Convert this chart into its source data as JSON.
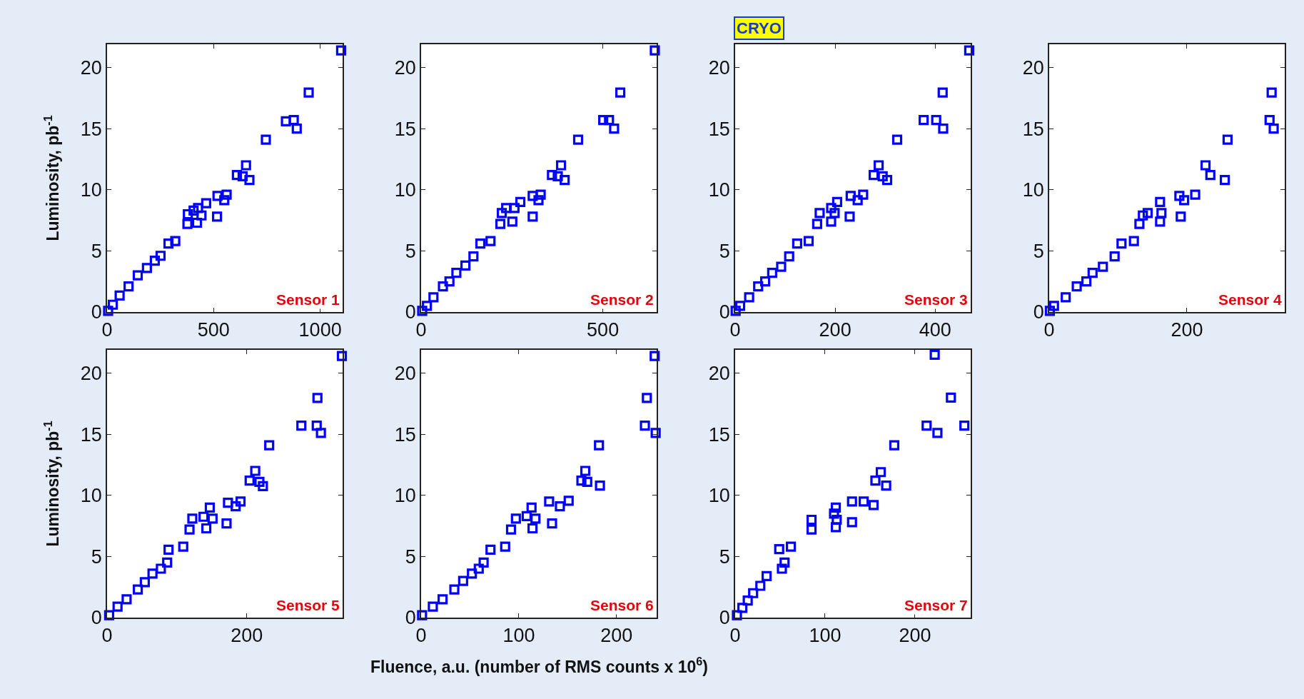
{
  "chart_data": [
    {
      "type": "scatter",
      "ylabel": "Luminosity, pb$^{-1}$",
      "annotations": [
        "Sensor 1"
      ],
      "marker": "square",
      "xlim": [
        0,
        1105
      ],
      "ylim": [
        0,
        21.9
      ],
      "xticks": [
        0,
        500,
        1000
      ],
      "yticks": [
        0,
        5,
        10,
        15,
        20
      ],
      "x": [
        5,
        27,
        59,
        101,
        144,
        187,
        224,
        251,
        288,
        320,
        377,
        379,
        406,
        422,
        427,
        443,
        465,
        516,
        518,
        550,
        561,
        609,
        636,
        652,
        668,
        745,
        839,
        876,
        890,
        946,
        1098
      ],
      "series": [
        {
          "color": "#0000ff",
          "values": [
            0.1,
            0.6,
            1.35,
            2.1,
            3.0,
            3.6,
            4.2,
            4.6,
            5.6,
            5.8,
            7.2,
            8.0,
            8.3,
            7.3,
            8.5,
            7.9,
            8.9,
            7.8,
            9.5,
            9.15,
            9.6,
            11.2,
            11.1,
            12.0,
            10.8,
            14.1,
            15.6,
            15.7,
            15.0,
            17.95,
            21.4
          ]
        }
      ]
    },
    {
      "type": "scatter",
      "annotations": [
        "Sensor 2"
      ],
      "marker": "square",
      "xlim": [
        0,
        648
      ],
      "ylim": [
        0,
        21.9
      ],
      "xticks": [
        0,
        500
      ],
      "yticks": [
        0,
        5,
        10,
        15,
        20
      ],
      "x": [
        3,
        16,
        34,
        60,
        78,
        97,
        122,
        144,
        163,
        191,
        218,
        222,
        234,
        251,
        257,
        273,
        307,
        307,
        323,
        329,
        360,
        376,
        385,
        395,
        432,
        501,
        517,
        531,
        548,
        643
      ],
      "series": [
        {
          "color": "#0000ff",
          "values": [
            0.1,
            0.5,
            1.2,
            2.1,
            2.5,
            3.2,
            3.8,
            4.55,
            5.6,
            5.8,
            7.2,
            8.1,
            8.5,
            7.4,
            8.5,
            9.0,
            9.5,
            7.8,
            9.15,
            9.6,
            11.2,
            11.1,
            12.0,
            10.8,
            14.1,
            15.7,
            15.7,
            15.0,
            17.95,
            21.4
          ]
        }
      ]
    },
    {
      "type": "scatter",
      "title": "CRYO",
      "annotations": [
        "Sensor 3"
      ],
      "marker": "square",
      "xlim": [
        0,
        471
      ],
      "ylim": [
        0,
        21.9
      ],
      "xticks": [
        0,
        200,
        400
      ],
      "yticks": [
        0,
        5,
        10,
        15,
        20
      ],
      "x": [
        1,
        10,
        28,
        46,
        60,
        74,
        92,
        108,
        124,
        147,
        164,
        169,
        192,
        192,
        199,
        204,
        229,
        231,
        245,
        256,
        277,
        287,
        295,
        304,
        324,
        377,
        402,
        416,
        415,
        468
      ],
      "series": [
        {
          "color": "#0000ff",
          "values": [
            0.1,
            0.5,
            1.2,
            2.1,
            2.5,
            3.2,
            3.7,
            4.55,
            5.6,
            5.8,
            7.2,
            8.1,
            8.5,
            7.4,
            8.1,
            9.0,
            7.8,
            9.5,
            9.15,
            9.6,
            11.2,
            12.0,
            11.1,
            10.8,
            14.1,
            15.7,
            15.7,
            15.0,
            17.95,
            21.4
          ]
        }
      ]
    },
    {
      "type": "scatter",
      "annotations": [
        "Sensor 4"
      ],
      "marker": "square",
      "xlim": [
        0,
        342
      ],
      "ylim": [
        0,
        21.9
      ],
      "xticks": [
        0,
        200
      ],
      "yticks": [
        0,
        5,
        10,
        15,
        20
      ],
      "x": [
        1,
        7,
        24,
        40,
        54,
        63,
        78,
        95,
        105,
        123,
        131,
        136,
        143,
        161,
        161,
        163,
        189,
        191,
        196,
        212,
        227,
        234,
        255,
        259,
        320,
        326,
        323
      ],
      "series": [
        {
          "color": "#0000ff",
          "values": [
            0.1,
            0.5,
            1.2,
            2.1,
            2.5,
            3.2,
            3.7,
            4.55,
            5.6,
            5.8,
            7.2,
            7.9,
            8.1,
            9.0,
            7.4,
            8.1,
            9.5,
            7.8,
            9.15,
            9.6,
            12.0,
            11.2,
            10.8,
            14.1,
            15.7,
            15.0,
            17.95
          ]
        }
      ]
    },
    {
      "type": "scatter",
      "ylabel": "Luminosity, pb$^{-1}$",
      "annotations": [
        "Sensor 5"
      ],
      "marker": "square",
      "xlim": [
        0,
        337
      ],
      "ylim": [
        0,
        21.9
      ],
      "xticks": [
        0,
        200
      ],
      "yticks": [
        0,
        5,
        10,
        15,
        20
      ],
      "x": [
        3,
        15,
        28,
        44,
        54,
        65,
        77,
        86,
        88,
        109,
        118,
        122,
        138,
        142,
        147,
        151,
        171,
        173,
        184,
        191,
        204,
        212,
        218,
        223,
        232,
        278,
        300,
        306,
        301,
        336
      ],
      "series": [
        {
          "color": "#0000ff",
          "values": [
            0.2,
            0.9,
            1.5,
            2.3,
            2.9,
            3.6,
            4.0,
            4.5,
            5.55,
            5.8,
            7.2,
            8.1,
            8.25,
            7.3,
            9.0,
            8.1,
            7.7,
            9.4,
            9.1,
            9.5,
            11.2,
            12.0,
            11.1,
            10.75,
            14.1,
            15.7,
            15.7,
            15.1,
            17.96,
            21.4
          ]
        }
      ]
    },
    {
      "type": "scatter",
      "xlabel": "Fluence, a.u. (number of RMS counts x 10$^{6}$)",
      "annotations": [
        "Sensor 6"
      ],
      "marker": "square",
      "xlim": [
        0,
        241
      ],
      "ylim": [
        0,
        21.9
      ],
      "xticks": [
        0,
        100,
        200
      ],
      "yticks": [
        0,
        5,
        10,
        15,
        20
      ],
      "x": [
        1,
        12,
        22,
        34,
        43,
        52,
        59,
        64,
        71,
        86,
        92,
        97,
        108,
        113,
        114,
        117,
        131,
        134,
        142,
        151,
        164,
        168,
        170,
        182,
        183,
        229,
        240,
        231,
        239
      ],
      "series": [
        {
          "color": "#0000ff",
          "values": [
            0.2,
            0.9,
            1.5,
            2.3,
            3.0,
            3.6,
            4.0,
            4.5,
            5.55,
            5.8,
            7.2,
            8.1,
            8.3,
            9.0,
            7.3,
            8.1,
            9.5,
            7.7,
            9.1,
            9.55,
            11.2,
            12.0,
            11.1,
            14.1,
            10.8,
            15.7,
            15.1,
            17.96,
            21.4
          ]
        }
      ]
    },
    {
      "type": "scatter",
      "annotations": [
        "Sensor 7"
      ],
      "marker": "square",
      "xlim": [
        0,
        262
      ],
      "ylim": [
        0,
        21.9
      ],
      "xticks": [
        0,
        100,
        200
      ],
      "yticks": [
        0,
        5,
        10,
        15,
        20
      ],
      "x": [
        2,
        8,
        14,
        20,
        28,
        35,
        52,
        55,
        49,
        62,
        85,
        85,
        110,
        112,
        113,
        112,
        130,
        130,
        143,
        154,
        156,
        162,
        168,
        177,
        213,
        225,
        255,
        240,
        222
      ],
      "series": [
        {
          "color": "#0000ff",
          "values": [
            0.2,
            0.8,
            1.4,
            2.0,
            2.6,
            3.4,
            4.0,
            4.5,
            5.6,
            5.8,
            7.2,
            8.0,
            8.5,
            9.0,
            8.0,
            7.4,
            9.5,
            7.8,
            9.5,
            9.2,
            11.2,
            11.9,
            10.8,
            14.1,
            15.7,
            15.1,
            15.7,
            18.0,
            21.5
          ]
        }
      ]
    }
  ]
}
